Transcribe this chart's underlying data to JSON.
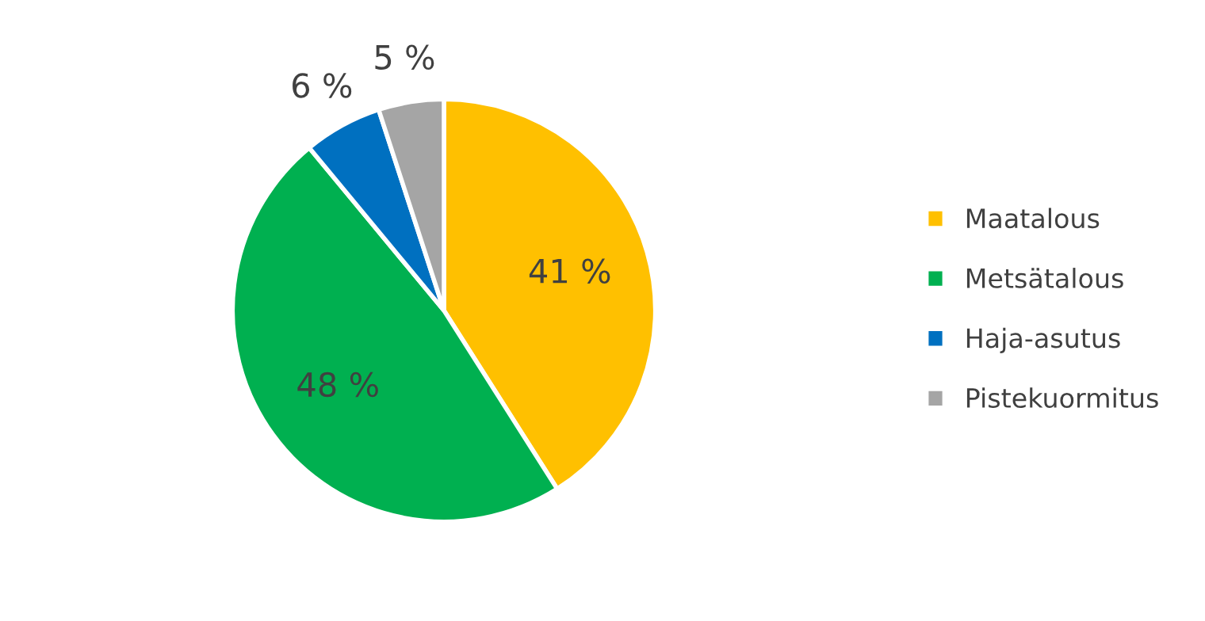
{
  "chart_data": {
    "type": "pie",
    "categories": [
      "Maatalous",
      "Metsätalous",
      "Haja-asutus",
      "Pistekuormitus"
    ],
    "values": [
      41,
      48,
      6,
      5
    ],
    "value_labels": [
      "41 %",
      "48 %",
      "6 %",
      "5 %"
    ],
    "colors": [
      "#ffc000",
      "#00b050",
      "#0070c0",
      "#a5a5a5"
    ],
    "legend": "right"
  }
}
